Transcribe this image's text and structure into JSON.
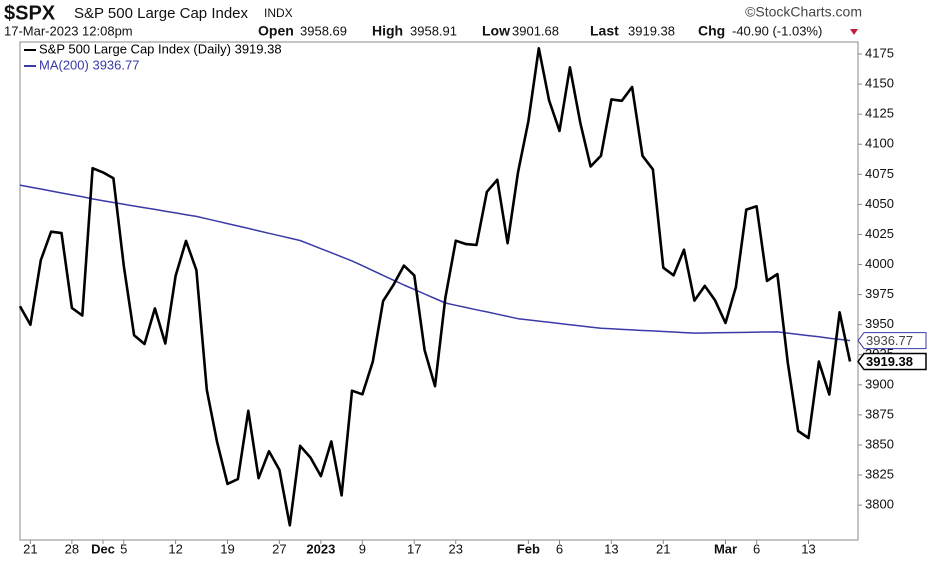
{
  "chart_data": {
    "type": "line",
    "header": {
      "symbol": "$SPX",
      "name": "S&P 500 Large Cap Index",
      "exchange": "INDX",
      "credit": "©StockCharts.com",
      "timestamp": "17-Mar-2023 12:08pm",
      "quote": [
        {
          "label": "Open",
          "value": "3958.69"
        },
        {
          "label": "High",
          "value": "3958.91"
        },
        {
          "label": "Low",
          "value": "3901.68"
        },
        {
          "label": "Last",
          "value": "3919.38"
        },
        {
          "label": "Chg",
          "value": "-40.90 (-1.03%)"
        }
      ]
    },
    "categories": [
      null,
      "21",
      null,
      null,
      null,
      "28",
      null,
      null,
      "Dec",
      null,
      "5",
      null,
      null,
      null,
      null,
      "12",
      null,
      null,
      null,
      null,
      "19",
      null,
      null,
      null,
      null,
      "27",
      null,
      null,
      null,
      "2023",
      null,
      null,
      null,
      "9",
      null,
      null,
      null,
      null,
      "17",
      null,
      null,
      null,
      "23",
      null,
      null,
      null,
      null,
      null,
      null,
      "Feb",
      null,
      null,
      "6",
      null,
      null,
      null,
      null,
      "13",
      null,
      null,
      null,
      null,
      "21",
      null,
      null,
      null,
      null,
      null,
      "Mar",
      null,
      null,
      "6",
      null,
      null,
      null,
      null,
      "13",
      null,
      null,
      null,
      null
    ],
    "series": [
      {
        "name": "S&P 500 Large Cap Index (Daily) 3919.38",
        "color": "#000000",
        "values": [
          3965.34,
          3949.94,
          4003.58,
          4027.26,
          4026.12,
          3963.94,
          3957.63,
          4080.11,
          4076.57,
          4071.7,
          3998.84,
          3941.26,
          3933.92,
          3963.51,
          3934.38,
          3990.56,
          4019.65,
          3995.32,
          3895.75,
          3852.36,
          3817.66,
          3821.62,
          3878.44,
          3822.39,
          3844.82,
          3829.25,
          3783.22,
          3849.28,
          3839.5,
          3824.14,
          3852.97,
          3808.1,
          3895.08,
          3892.09,
          3919.25,
          3969.61,
          3983.17,
          3999.09,
          3990.97,
          3928.86,
          3898.85,
          3972.61,
          4019.81,
          4016.95,
          4016.22,
          4060.43,
          4070.56,
          4017.77,
          4076.6,
          4119.21,
          4179.76,
          4136.48,
          4111.08,
          4164.0,
          4117.86,
          4081.5,
          4090.46,
          4137.29,
          4136.13,
          4147.6,
          4090.41,
          4079.09,
          3997.34,
          3991.05,
          4012.32,
          3970.04,
          3982.24,
          3970.15,
          3951.39,
          3981.35,
          4045.64,
          4048.42,
          3986.37,
          3992.01,
          3918.32,
          3861.59,
          3855.76,
          3919.29,
          3891.93,
          3960.28,
          3919.38
        ]
      },
      {
        "name": "MA(200) 3936.77",
        "color": "#3a3aa8",
        "values": [
          4066,
          4064.4,
          4062.8,
          4061.1,
          4059.5,
          4057.9,
          4056.3,
          4054.6,
          4053,
          4051.6,
          4050.1,
          4048.7,
          4047.2,
          4045.8,
          4044.3,
          4042.9,
          4041.4,
          4040,
          4038,
          4036,
          4034,
          4032,
          4030,
          4028,
          4026,
          4024,
          4022,
          4020,
          4016.6,
          4013.2,
          4009.8,
          4006.4,
          4003,
          3999,
          3995,
          3991,
          3987,
          3983,
          3979.3,
          3975.5,
          3971.8,
          3968,
          3966.1,
          3964.3,
          3962.4,
          3960.6,
          3958.7,
          3956.9,
          3955,
          3954,
          3953,
          3952,
          3951,
          3950,
          3949,
          3948,
          3947,
          3946.6,
          3946.1,
          3945.7,
          3945.2,
          3944.8,
          3944.3,
          3943.9,
          3943.4,
          3943,
          3943.1,
          3943.3,
          3943.4,
          3943.5,
          3943.6,
          3943.8,
          3943.9,
          3944,
          3943,
          3941.9,
          3940.9,
          3939.9,
          3938.8,
          3937.8,
          3936.77
        ]
      }
    ],
    "ylim": [
      3771,
      4185
    ],
    "yticks": [
      3800,
      3825,
      3850,
      3875,
      3900,
      3925,
      3950,
      3975,
      4000,
      4025,
      4050,
      4075,
      4100,
      4125,
      4150,
      4175
    ],
    "change_color": "#c0203a"
  }
}
